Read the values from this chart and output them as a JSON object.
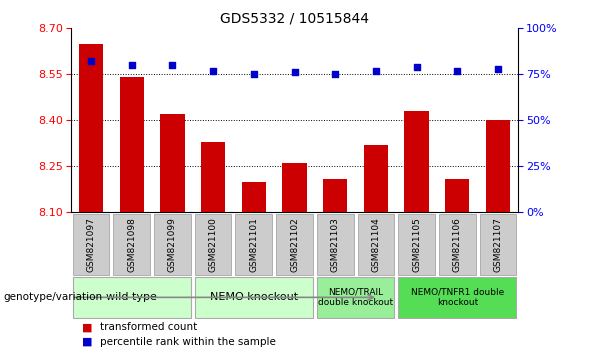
{
  "title": "GDS5332 / 10515844",
  "samples": [
    "GSM821097",
    "GSM821098",
    "GSM821099",
    "GSM821100",
    "GSM821101",
    "GSM821102",
    "GSM821103",
    "GSM821104",
    "GSM821105",
    "GSM821106",
    "GSM821107"
  ],
  "bar_values": [
    8.65,
    8.54,
    8.42,
    8.33,
    8.2,
    8.26,
    8.21,
    8.32,
    8.43,
    8.21,
    8.4
  ],
  "percentile_values": [
    82,
    80,
    80,
    77,
    75,
    76,
    75,
    77,
    79,
    77,
    78
  ],
  "ylim_left": [
    8.1,
    8.7
  ],
  "ylim_right": [
    0,
    100
  ],
  "yticks_left": [
    8.1,
    8.25,
    8.4,
    8.55,
    8.7
  ],
  "yticks_right": [
    0,
    25,
    50,
    75,
    100
  ],
  "bar_color": "#cc0000",
  "dot_color": "#0000cc",
  "groups": [
    {
      "label": "wild type",
      "samples": [
        0,
        1,
        2
      ],
      "color": "#ccffcc",
      "font_size": 8
    },
    {
      "label": "NEMO knockout",
      "samples": [
        3,
        4,
        5
      ],
      "color": "#ccffcc",
      "font_size": 8
    },
    {
      "label": "NEMO/TRAIL\ndouble knockout",
      "samples": [
        6,
        7
      ],
      "color": "#99ee99",
      "font_size": 6.5
    },
    {
      "label": "NEMO/TNFR1 double\nknockout",
      "samples": [
        8,
        9,
        10
      ],
      "color": "#55dd55",
      "font_size": 6.5
    }
  ],
  "genotype_label": "genotype/variation",
  "legend_items": [
    {
      "label": "transformed count",
      "color": "#cc0000"
    },
    {
      "label": "percentile rank within the sample",
      "color": "#0000cc"
    }
  ],
  "tick_bg": "#cccccc",
  "tick_edge": "#999999",
  "group_edge": "#aaaaaa",
  "plot_bg": "#ffffff",
  "fig_bg": "#ffffff"
}
